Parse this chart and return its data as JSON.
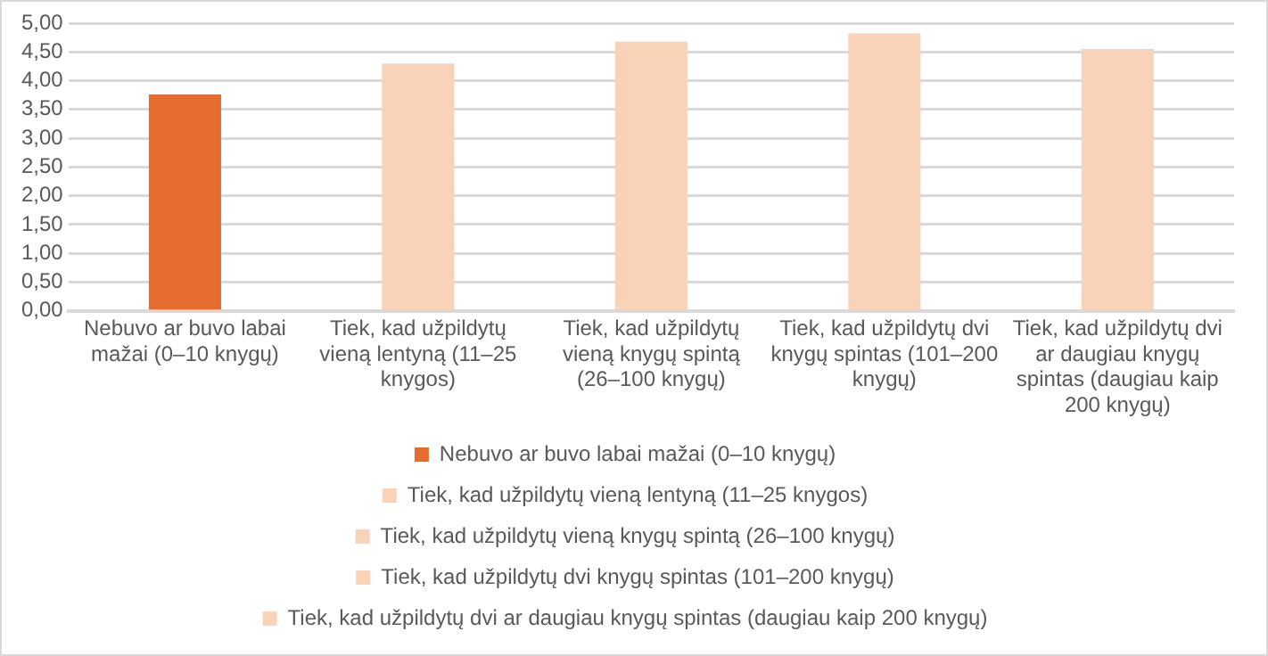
{
  "chart_data": {
    "type": "bar",
    "categories": [
      "Nebuvo ar buvo labai mažai (0–10 knygų)",
      "Tiek, kad užpildytų vieną lentyną (11–25 knygos)",
      "Tiek, kad užpildytų vieną knygų spintą (26–100 knygų)",
      "Tiek, kad užpildytų dvi knygų spintas (101–200 knygų)",
      "Tiek, kad užpildytų dvi ar daugiau knygų spintas (daugiau kaip 200 knygų)"
    ],
    "series": [
      {
        "name": "Nebuvo ar buvo labai mažai (0–10 knygų)",
        "color": "#e46c2e",
        "values": [
          3.76,
          null,
          null,
          null,
          null
        ]
      },
      {
        "name": "Tiek, kad užpildytų vieną lentyną (11–25 knygos)",
        "color": "#f8d3b8",
        "values": [
          null,
          4.3,
          null,
          null,
          null
        ]
      },
      {
        "name": "Tiek, kad užpildytų vieną knygų spintą (26–100 knygų)",
        "color": "#f8d3b8",
        "values": [
          null,
          null,
          4.68,
          null,
          null
        ]
      },
      {
        "name": "Tiek, kad užpildytų dvi knygų spintas (101–200 knygų)",
        "color": "#f8d3b8",
        "values": [
          null,
          null,
          null,
          4.82,
          null
        ]
      },
      {
        "name": "Tiek, kad užpildytų dvi ar daugiau knygų spintas (daugiau kaip 200 knygų)",
        "color": "#f8d3b8",
        "values": [
          null,
          null,
          null,
          null,
          4.55
        ]
      }
    ],
    "ylim": [
      0,
      5
    ],
    "yticks": [
      {
        "value": 0,
        "label": "0,00"
      },
      {
        "value": 0.5,
        "label": "0,50"
      },
      {
        "value": 1,
        "label": "1,00"
      },
      {
        "value": 1.5,
        "label": "1,50"
      },
      {
        "value": 2,
        "label": "2,00"
      },
      {
        "value": 2.5,
        "label": "2,50"
      },
      {
        "value": 3,
        "label": "3,00"
      },
      {
        "value": 3.5,
        "label": "3,50"
      },
      {
        "value": 4,
        "label": "4,00"
      },
      {
        "value": 4.5,
        "label": "4,50"
      },
      {
        "value": 5,
        "label": "5,00"
      }
    ],
    "grid": "y",
    "legend": "bottom"
  }
}
